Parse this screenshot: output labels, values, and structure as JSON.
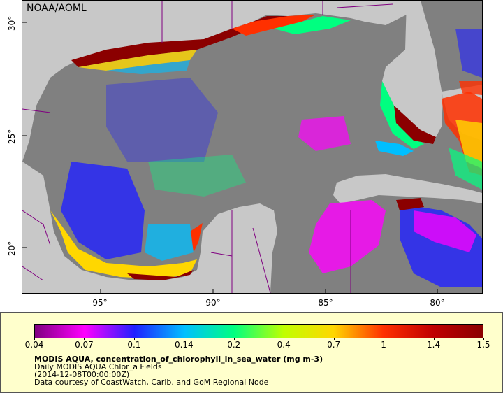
{
  "map": {
    "credit": "NOAA/AOML",
    "lon_labels": [
      "-95°",
      "-90°",
      "-85°",
      "-80°"
    ],
    "lat_labels": [
      "30°",
      "25°",
      "20°"
    ],
    "land_color": "#c8c8c8",
    "ocean_nodata_color": "#808080",
    "border_color": "#800080"
  },
  "legend": {
    "tick_labels": [
      "0.04",
      "0.07",
      "0.1",
      "0.14",
      "0.2",
      "0.4",
      "0.7",
      "1",
      "1.4",
      "1.5"
    ],
    "colors": [
      "#800080",
      "#ff00ff",
      "#2020ff",
      "#00bfff",
      "#00ff80",
      "#c0ff00",
      "#ffd700",
      "#ff3000",
      "#c00000",
      "#8b0000"
    ],
    "title": "MODIS AQUA, concentration_of_chlorophyll_in_sea_water (mg m-3)",
    "line2": "Daily MODIS AQUA Chlor_a Fields",
    "line3": "(2014-12-08T00:00:00Z)",
    "line4": "Data courtesy of CoastWatch, Carib. and GoM Regional Node"
  }
}
